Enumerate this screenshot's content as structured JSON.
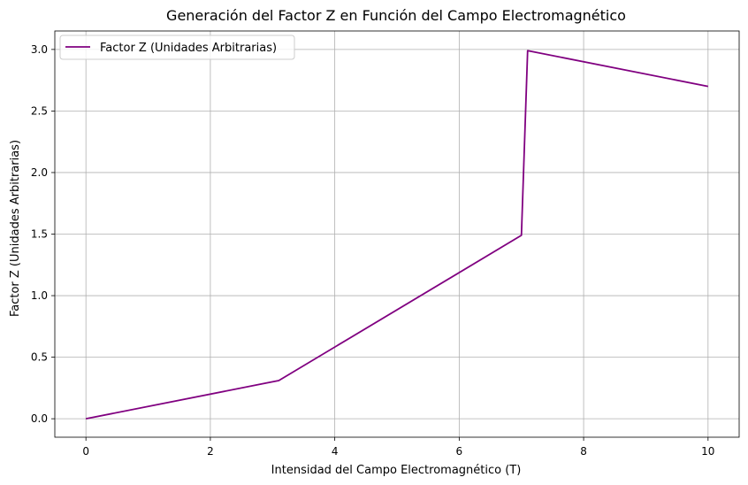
{
  "chart_data": {
    "type": "line",
    "title": "Generación del Factor Z en Función del Campo Electromagnético",
    "xlabel": "Intensidad del Campo Electromagnético (T)",
    "ylabel": "Factor Z (Unidades Arbitrarias)",
    "xlim": [
      -0.5,
      10.5
    ],
    "ylim": [
      -0.15,
      3.15
    ],
    "xticks": [
      0,
      2,
      4,
      6,
      8,
      10
    ],
    "xtick_labels": [
      "0",
      "2",
      "4",
      "6",
      "8",
      "10"
    ],
    "yticks": [
      0.0,
      0.5,
      1.0,
      1.5,
      2.0,
      2.5,
      3.0
    ],
    "ytick_labels": [
      "0.0",
      "0.5",
      "1.0",
      "1.5",
      "2.0",
      "2.5",
      "3.0"
    ],
    "grid": true,
    "legend_position": "upper-left",
    "series": [
      {
        "name": "Factor Z (Unidades Arbitrarias)",
        "color": "#800080",
        "x": [
          0,
          2.9,
          3.1,
          7.0,
          7.1,
          10
        ],
        "y": [
          0.0,
          0.29,
          0.31,
          1.49,
          2.99,
          2.7
        ]
      }
    ]
  }
}
